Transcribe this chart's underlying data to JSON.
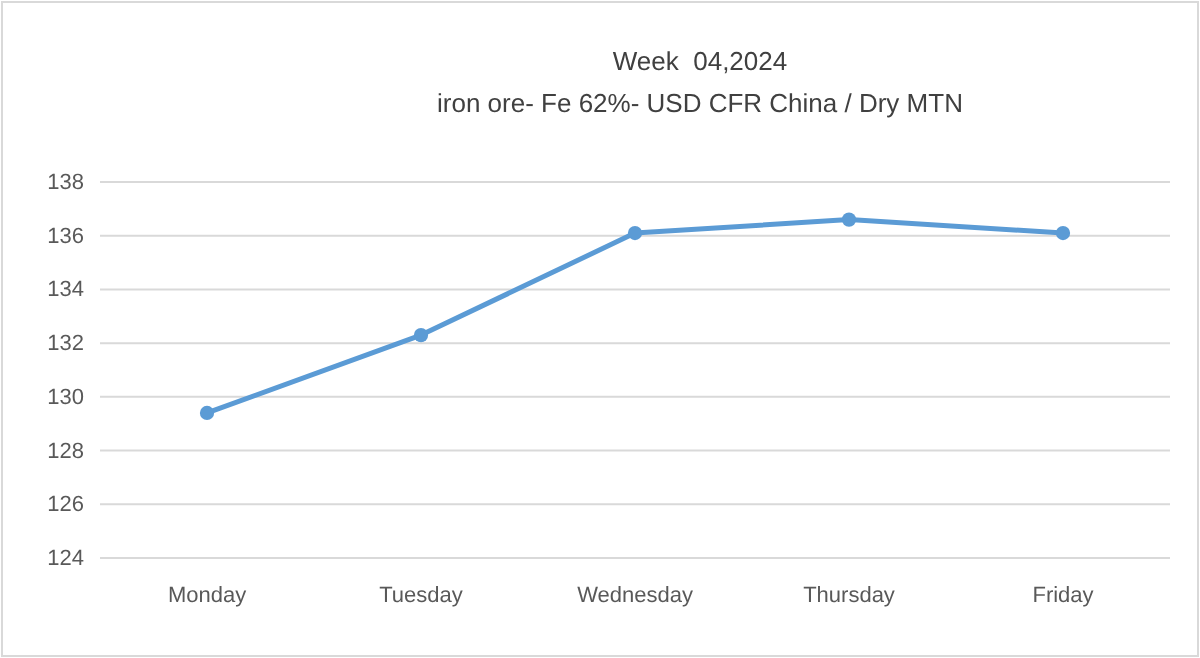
{
  "chart_data": {
    "type": "line",
    "title": "Week  04,2024",
    "subtitle": "iron ore- Fe 62%- USD CFR China / Dry MTN",
    "categories": [
      "Monday",
      "Tuesday",
      "Wednesday",
      "Thursday",
      "Friday"
    ],
    "series": [
      {
        "color": "#5b9bd5",
        "values": [
          129.4,
          132.3,
          136.1,
          136.6,
          136.1
        ]
      }
    ],
    "ylim": [
      124,
      138
    ],
    "yticks": [
      124,
      126,
      128,
      130,
      132,
      134,
      136,
      138
    ],
    "grid": "y",
    "marker": "circle",
    "line_style": "solid"
  }
}
